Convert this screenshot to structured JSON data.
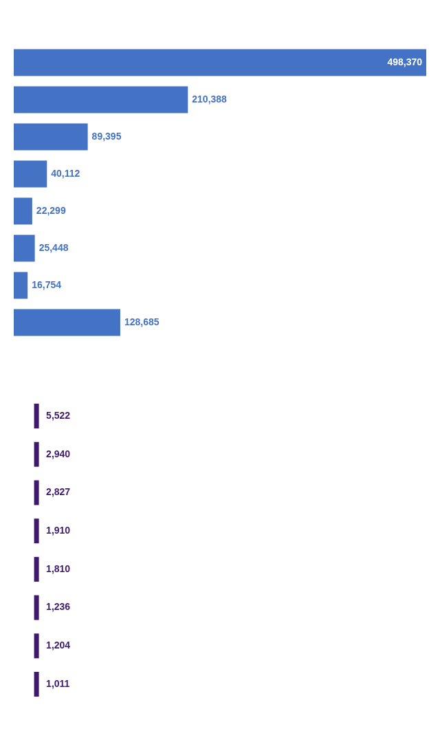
{
  "chart_data": [
    {
      "type": "bar",
      "orientation": "horizontal",
      "categories": [
        null,
        null,
        null,
        null,
        null,
        null,
        null,
        null
      ],
      "values": [
        498370,
        210388,
        89395,
        40112,
        22299,
        25448,
        16754,
        128685
      ],
      "value_labels": [
        "498,370",
        "210,388",
        "89,395",
        "40,112",
        "22,299",
        "25,448",
        "16,754",
        "128,685"
      ],
      "color": "#4472C4",
      "xlim": [
        0,
        498370
      ],
      "data_labels": true,
      "tick_labels": false,
      "grid": false
    },
    {
      "type": "list",
      "categories": [
        null,
        null,
        null,
        null,
        null,
        null,
        null,
        null
      ],
      "values": [
        5522,
        2940,
        2827,
        1910,
        1810,
        1236,
        1204,
        1011
      ],
      "value_labels": [
        "5,522",
        "2,940",
        "2,827",
        "1,910",
        "1,810",
        "1,236",
        "1,204",
        "1,011"
      ],
      "color": "#3D1A6E",
      "data_labels": true,
      "tick_labels": false,
      "grid": false
    }
  ]
}
